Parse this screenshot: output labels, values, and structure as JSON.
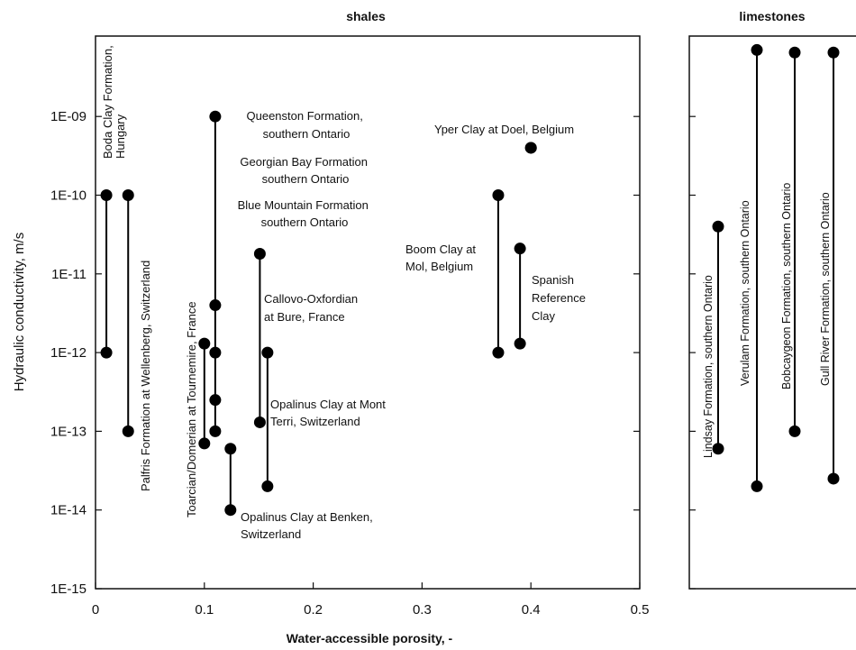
{
  "chart_data": [
    {
      "panel": "shales",
      "type": "scatter",
      "title": "shales",
      "xlabel": "Water-accessible porosity, -",
      "ylabel": "Hydraulic conductivity, m/s",
      "xlim": [
        0,
        0.5
      ],
      "ylim": [
        1e-15,
        1e-08
      ],
      "yscale": "log",
      "grid": false,
      "x_ticks": [
        {
          "value": 0,
          "label": "0"
        },
        {
          "value": 0.1,
          "label": "0.1"
        },
        {
          "value": 0.2,
          "label": "0.2"
        },
        {
          "value": 0.3,
          "label": "0.3"
        },
        {
          "value": 0.4,
          "label": "0.4"
        },
        {
          "value": 0.5,
          "label": "0.5"
        }
      ],
      "y_ticks": [
        {
          "value": 1e-15,
          "label": "1E-15"
        },
        {
          "value": 1e-14,
          "label": "1E-14"
        },
        {
          "value": 1e-13,
          "label": "1E-13"
        },
        {
          "value": 1e-12,
          "label": "1E-12"
        },
        {
          "value": 1e-11,
          "label": "1E-11"
        },
        {
          "value": 1e-10,
          "label": "1E-10"
        },
        {
          "value": 1e-09,
          "label": "1E-09"
        }
      ],
      "series": [
        {
          "name": "Boda Clay Formation, Hungary",
          "x": 0.01,
          "y_low": 1e-12,
          "y_high": 1e-10
        },
        {
          "name": "Palfris Formation at Wellenberg, Switzerland",
          "x": 0.03,
          "y_low": 1e-13,
          "y_high": 1e-10
        },
        {
          "name": "Toarcian/Domerian at Tournemire, France",
          "x": 0.1,
          "y_low": 7e-14,
          "y_high": 1.3e-12
        },
        {
          "name": "Queenston Formation, southern Ontario",
          "x": 0.11,
          "y_low": 1e-13,
          "y_high": 1e-09,
          "points": [
            1e-09,
            4e-12,
            1e-12,
            2.5e-13,
            1e-13
          ]
        },
        {
          "name": "Opalinus Clay at Benken, Switzerland",
          "x": 0.124,
          "y_low": 1e-14,
          "y_high": 6e-14
        },
        {
          "name": "Opalinus Clay at Mont Terri, Switzerland",
          "x": 0.151,
          "y_low": 1.3e-13,
          "y_high": 1.8e-11
        },
        {
          "name": "Callovo-Oxfordian at Bure, France",
          "x": 0.158,
          "y_low": 2e-14,
          "y_high": 1e-12
        },
        {
          "name": "Boom Clay at Mol, Belgium",
          "x": 0.37,
          "y_low": 1e-12,
          "y_high": 1e-10
        },
        {
          "name": "Spanish Reference Clay",
          "x": 0.39,
          "y_low": 1.3e-12,
          "y_high": 2.1e-11
        },
        {
          "name": "Yper Clay at Doel, Belgium",
          "x": 0.4,
          "y_low": 4e-10,
          "y_high": 4e-10
        }
      ],
      "annotations": {
        "boda": [
          "Boda Clay Formation,",
          "Hungary"
        ],
        "palfris": "Palfris Formation at Wellenberg, Switzerland",
        "toarcian": "Toarcian/Domerian at Tournemire, France",
        "queenston": [
          "Queenston Formation,",
          "southern Ontario"
        ],
        "georgian": [
          "Georgian Bay Formation",
          "southern Ontario"
        ],
        "bluemountain": [
          "Blue Mountain Formation",
          "southern Ontario"
        ],
        "callovo": [
          "Callovo-Oxfordian",
          "at Bure, France"
        ],
        "opalinus_mt": [
          "Opalinus Clay at Mont",
          "Terri, Switzerland"
        ],
        "opalinus_bk": [
          "Opalinus Clay at Benken,",
          "Switzerland"
        ],
        "boom": [
          "Boom Clay at",
          "Mol, Belgium"
        ],
        "spanish": [
          "Spanish",
          "Reference",
          "Clay"
        ],
        "yper": "Yper Clay at Doel, Belgium"
      }
    },
    {
      "panel": "limestones",
      "type": "scatter",
      "title": "limestones",
      "yscale": "log",
      "ylim": [
        1e-15,
        1e-08
      ],
      "series": [
        {
          "name": "Lindsay Formation, southern Ontario",
          "y_low": 6e-14,
          "y_high": 4e-11
        },
        {
          "name": "Verulam Formation, southern Ontario",
          "y_low": 2e-14,
          "y_high": 7e-09
        },
        {
          "name": "Bobcaygeon Formation, southern Ontario",
          "y_low": 1e-13,
          "y_high": 6.5e-09
        },
        {
          "name": "Gull River Formation, southern Ontario",
          "y_low": 2.5e-14,
          "y_high": 6.5e-09
        }
      ],
      "annotations": {
        "lindsay": "Lindsay Formation, southern Ontario",
        "verulam": "Verulam Formation, southern Ontario",
        "bobcaygeon": "Bobcaygeon Formation, southern Ontario",
        "gullriver": "Gull River Formation, southern Ontario"
      }
    }
  ]
}
